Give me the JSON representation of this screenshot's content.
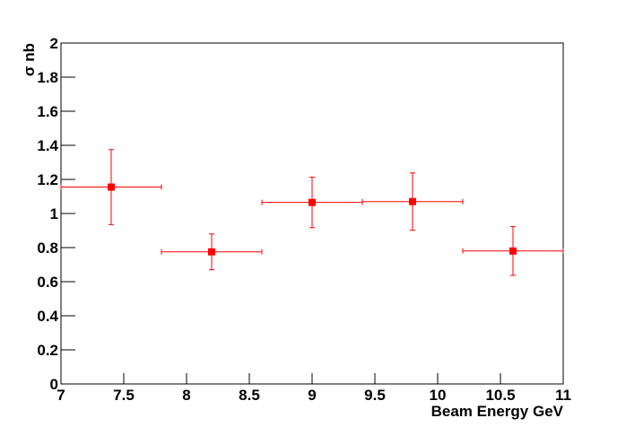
{
  "chart_data": {
    "type": "scatter",
    "x_label": "Beam Energy GeV",
    "y_label": "σ nb",
    "x": [
      7.4,
      8.2,
      9.0,
      9.8,
      10.6
    ],
    "xerr": [
      0.4,
      0.4,
      0.4,
      0.4,
      0.4
    ],
    "series": [
      {
        "name": "σ",
        "color": "#ff0000",
        "values": [
          1.155,
          0.775,
          1.065,
          1.07,
          0.78
        ],
        "yerr": [
          0.22,
          0.105,
          0.148,
          0.168,
          0.143
        ]
      }
    ],
    "xlim": [
      7,
      11
    ],
    "xticks": [
      7,
      7.5,
      8,
      8.5,
      9,
      9.5,
      10,
      10.5,
      11
    ],
    "ylim": [
      0,
      2
    ],
    "yticks": [
      0,
      0.2,
      0.4,
      0.6,
      0.8,
      1,
      1.2,
      1.4,
      1.6,
      1.8,
      2
    ],
    "grid": false
  }
}
